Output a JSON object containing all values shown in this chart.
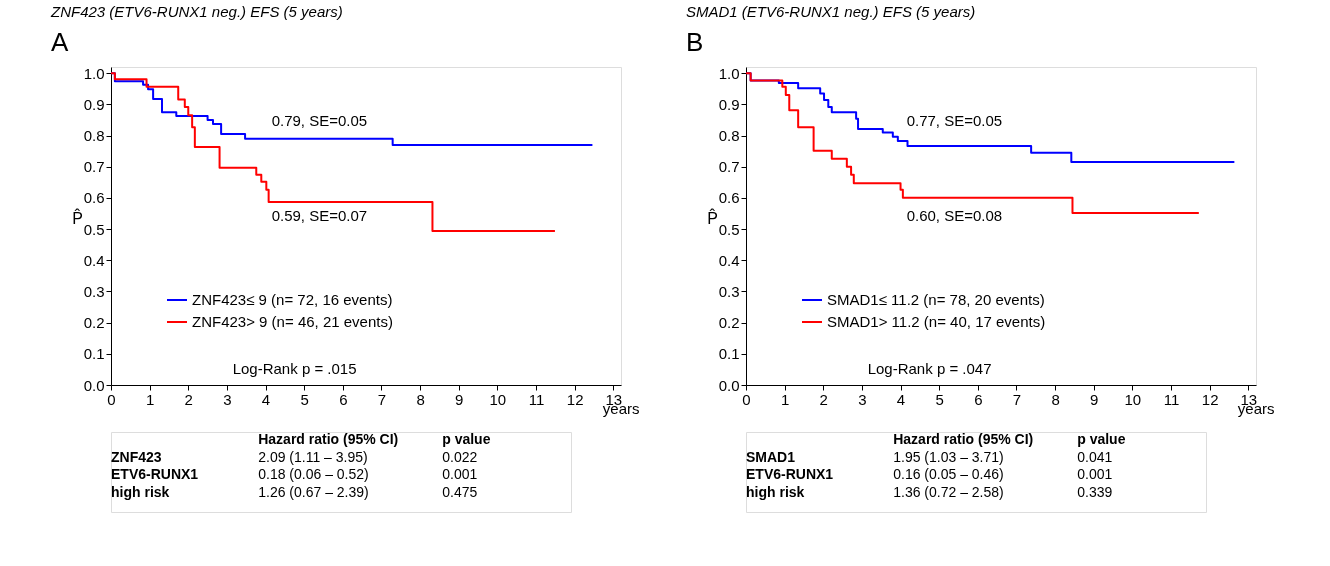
{
  "chart_data": [
    {
      "type": "step",
      "title": "ZNF423 (ETV6-RUNX1 neg.)  EFS (5 years)",
      "xlabel": "years",
      "ylabel": "P̂",
      "xlim": [
        0,
        13.2
      ],
      "xticks": [
        0,
        1,
        2,
        3,
        4,
        5,
        6,
        7,
        8,
        9,
        10,
        11,
        12,
        13
      ],
      "ylim": [
        0,
        1.02
      ],
      "yticks": [
        {
          "value": 0,
          "label": "0.0"
        },
        {
          "value": 0.1,
          "label": "0.1"
        },
        {
          "value": 0.2,
          "label": "0.2"
        },
        {
          "value": 0.3,
          "label": "0.3"
        },
        {
          "value": 0.4,
          "label": "0.4"
        },
        {
          "value": 0.5,
          "label": "0.5"
        },
        {
          "value": 0.6,
          "label": "0.6"
        },
        {
          "value": 0.7,
          "label": "0.7"
        },
        {
          "value": 0.8,
          "label": "0.8"
        },
        {
          "value": 0.9,
          "label": "0.9"
        },
        {
          "value": 1,
          "label": "1.0"
        }
      ],
      "grid": false,
      "legend": "bottom left",
      "line_style": "solid",
      "marker": "none",
      "series": [
        {
          "name": "ZNF423≤ 9 (n= 72, 16 events)",
          "color": "#0000ff",
          "x": [
            0,
            0.1,
            0.83,
            0.96,
            1.09,
            1.32,
            1.69,
            2.5,
            2.64,
            2.85,
            3.47,
            7.29,
            12.46
          ],
          "values": [
            1.0,
            0.974,
            0.963,
            0.949,
            0.917,
            0.875,
            0.863,
            0.85,
            0.837,
            0.805,
            0.79,
            0.77,
            0.77
          ]
        },
        {
          "name": "ZNF423> 9 (n= 46, 21 events)",
          "color": "#ff0000",
          "x": [
            0,
            0.1,
            0.92,
            1.74,
            1.91,
            2.0,
            2.1,
            2.17,
            2.81,
            3.76,
            3.89,
            4.02,
            4.08,
            8.32,
            11.49
          ],
          "values": [
            1.0,
            0.981,
            0.957,
            0.916,
            0.892,
            0.865,
            0.827,
            0.763,
            0.697,
            0.674,
            0.652,
            0.626,
            0.587,
            0.494,
            0.494
          ]
        }
      ],
      "annotations": [
        "A",
        "Log-Rank p = .015",
        "0.79, SE=0.05",
        "0.59, SE=0.07",
        "Hazard ratio (95% CI)",
        "p value",
        "ZNF423",
        "2.09 (1.11 – 3.95)",
        "0.022",
        "ETV6-RUNX1",
        "0.18 (0.06 – 0.52)",
        "0.001",
        "high risk",
        "1.26 (0.67 – 2.39)",
        "0.475"
      ]
    },
    {
      "type": "step",
      "title": "SMAD1 (ETV6-RUNX1 neg.)  EFS (5 years)",
      "xlabel": "years",
      "ylabel": "P̂",
      "xlim": [
        0,
        13.2
      ],
      "xticks": [
        0,
        1,
        2,
        3,
        4,
        5,
        6,
        7,
        8,
        9,
        10,
        11,
        12,
        13
      ],
      "ylim": [
        0,
        1.02
      ],
      "yticks": [
        {
          "value": 0,
          "label": "0.0"
        },
        {
          "value": 0.1,
          "label": "0.1"
        },
        {
          "value": 0.2,
          "label": "0.2"
        },
        {
          "value": 0.3,
          "label": "0.3"
        },
        {
          "value": 0.4,
          "label": "0.4"
        },
        {
          "value": 0.5,
          "label": "0.5"
        },
        {
          "value": 0.6,
          "label": "0.6"
        },
        {
          "value": 0.7,
          "label": "0.7"
        },
        {
          "value": 0.8,
          "label": "0.8"
        },
        {
          "value": 0.9,
          "label": "0.9"
        },
        {
          "value": 1,
          "label": "1.0"
        }
      ],
      "grid": false,
      "legend": "bottom left",
      "line_style": "solid",
      "marker": "none",
      "series": [
        {
          "name": "SMAD1≤ 11.2 (n= 78, 20 events)",
          "color": "#0000ff",
          "x": [
            0,
            0.12,
            0.85,
            1.35,
            1.92,
            2.02,
            2.13,
            2.22,
            2.85,
            2.9,
            3.54,
            3.8,
            3.93,
            4.18,
            7.38,
            8.42,
            12.64
          ],
          "values": [
            1.0,
            0.977,
            0.969,
            0.952,
            0.935,
            0.914,
            0.892,
            0.875,
            0.854,
            0.821,
            0.81,
            0.796,
            0.783,
            0.767,
            0.745,
            0.715,
            0.715
          ]
        },
        {
          "name": "SMAD1> 11.2 (n= 40, 17 events)",
          "color": "#ff0000",
          "x": [
            0,
            0.12,
            0.94,
            1.03,
            1.12,
            1.35,
            1.75,
            2.22,
            2.61,
            2.72,
            2.79,
            4.0,
            4.06,
            8.45,
            11.72
          ],
          "values": [
            1.0,
            0.977,
            0.957,
            0.93,
            0.881,
            0.827,
            0.751,
            0.726,
            0.7,
            0.674,
            0.647,
            0.626,
            0.601,
            0.552,
            0.552
          ]
        }
      ],
      "annotations": [
        "B",
        "Log-Rank p = .047",
        "0.77, SE=0.05",
        "0.60, SE=0.08",
        "Hazard ratio (95% CI)",
        "p value",
        "SMAD1",
        "1.95 (1.03 – 3.71)",
        "0.041",
        "ETV6-RUNX1",
        "0.16 (0.05 – 0.46)",
        "0.001",
        "high risk",
        "1.36 (0.72 – 2.58)",
        "0.339"
      ]
    }
  ]
}
